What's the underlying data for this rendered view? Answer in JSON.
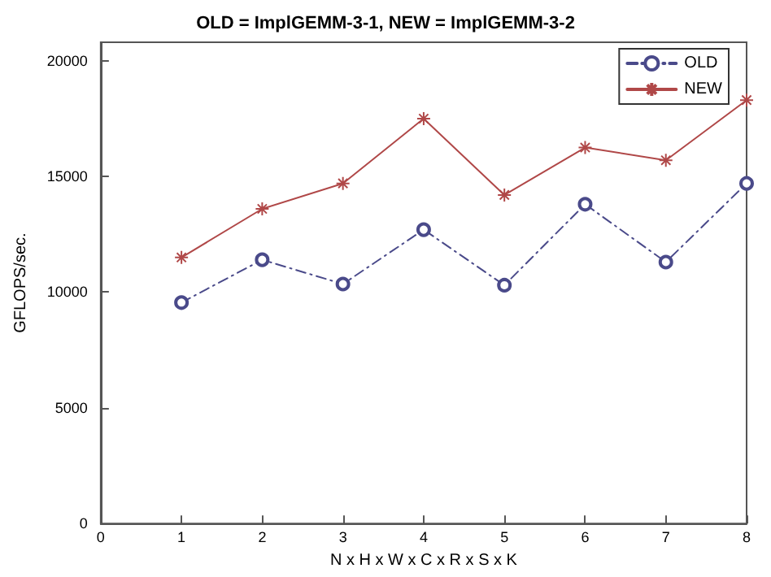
{
  "chart_data": {
    "type": "line",
    "title": "OLD = ImplGEMM-3-1, NEW = ImplGEMM-3-2",
    "xlabel": "N x H x W x C x R x S x K",
    "ylabel": "GFLOPS/sec.",
    "x": [
      1,
      2,
      3,
      4,
      5,
      6,
      7,
      8
    ],
    "series": [
      {
        "name": "OLD",
        "color": "#4a4a8a",
        "marker": "circle",
        "line_style": "dashed",
        "values": [
          9550,
          11400,
          10350,
          12700,
          10300,
          13800,
          11300,
          14700
        ]
      },
      {
        "name": "NEW",
        "color": "#b04848",
        "marker": "cross",
        "line_style": "solid",
        "values": [
          11500,
          13600,
          14700,
          17500,
          14200,
          16250,
          15700,
          18300
        ]
      }
    ],
    "xlim": [
      0,
      8
    ],
    "xticks": [
      0,
      1,
      2,
      3,
      4,
      5,
      6,
      7,
      8
    ],
    "ylim": [
      0,
      20800
    ],
    "yticks": [
      0,
      5000,
      10000,
      15000,
      20000
    ],
    "grid": false,
    "legend": "top right"
  }
}
